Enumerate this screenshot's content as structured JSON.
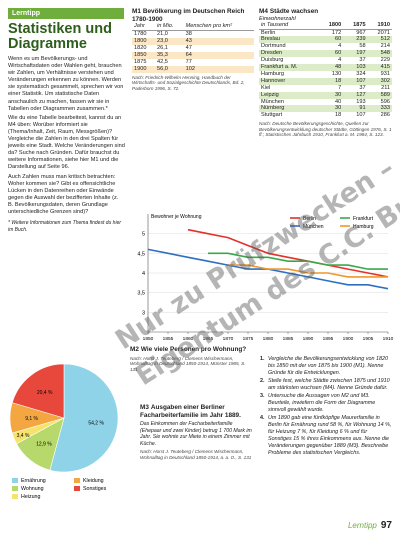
{
  "lerntipp": {
    "label": "Lerntipp",
    "title": "Statistiken und Diagramme",
    "paragraphs": [
      "Wenn es um Bevölkerungs- und Wirtschaftsdaten oder Wahlen geht, brauchen wir Zahlen, um Verhältnisse verstehen und Veränderungen erkennen zu können. Werden sie systematisch gesammelt, sprechen wir von einer Statistik. Um statistische Daten anschaulich zu machen, fassen wir sie in Tabellen oder Diagrammen zusammen.*",
      "Wie du eine Tabelle bearbeitest, kannst du an M4 üben: Worüber informiert sie (Thema/Inhalt, Zeit, Raum, Messgrößen)? Vergleiche die Zahlen in den drei Spalten für jeweils eine Stadt. Welche Veränderungen sind da? Suche nach Gründen. Dafür brauchst du weitere Informationen, siehe hier M1 und die Darstellung auf Seite 96.",
      "Auch Zahlen muss man kritisch betrachten: Woher kommen sie? Gibt es offensichtliche Lücken in den Datenreihen oder Einwände gegen die Auswahl der bezifferten Inhalte (z. B. Bevölkerungsdaten, deren Grundlage unterschiedliche Grenzen sind)?"
    ],
    "footnote": "* Weitere Informationen zum Thema findest du hier im Buch."
  },
  "m1": {
    "label": "M1",
    "title": "Bevölkerung im Deutschen Reich 1780-1900",
    "columns": [
      "Jahr",
      "in Mio.",
      "Menschen pro km²"
    ],
    "rows": [
      [
        "1780",
        "21,0",
        "38"
      ],
      [
        "1800",
        "23,0",
        "43"
      ],
      [
        "1820",
        "26,1",
        "47"
      ],
      [
        "1850",
        "35,3",
        "64"
      ],
      [
        "1875",
        "42,5",
        "77"
      ],
      [
        "1900",
        "56,0",
        "102"
      ]
    ],
    "source": "Nach: Friedrich-Wilhelm Henning, Handbuch der Wirtschafts- und Sozialgeschichte Deutschlands, Bd. 2, Paderborn 1996, S. 72."
  },
  "m4": {
    "label": "M4",
    "title": "Städte wachsen",
    "subtitle": "Einwohnerzahl",
    "columns": [
      "in Tausend",
      "1800",
      "1875",
      "1910"
    ],
    "rows": [
      [
        "Berlin",
        "172",
        "967",
        "2071"
      ],
      [
        "Breslau",
        "60",
        "239",
        "512"
      ],
      [
        "Dortmund",
        "4",
        "58",
        "214"
      ],
      [
        "Dresden",
        "60",
        "197",
        "548"
      ],
      [
        "Duisburg",
        "4",
        "37",
        "229"
      ],
      [
        "Frankfurt a. M.",
        "48",
        "103",
        "415"
      ],
      [
        "Hamburg",
        "130",
        "324",
        "931"
      ],
      [
        "Hannover",
        "18",
        "107",
        "302"
      ],
      [
        "Kiel",
        "7",
        "37",
        "211"
      ],
      [
        "Leipzig",
        "30",
        "127",
        "589"
      ],
      [
        "München",
        "40",
        "193",
        "596"
      ],
      [
        "Nürnberg",
        "30",
        "91",
        "333"
      ],
      [
        "Stuttgart",
        "18",
        "107",
        "286"
      ]
    ],
    "source": "Nach: Deutsche Bevölkerungsgeschichte, Quellen zur Bevölkerungsentwicklung deutscher Städte, Göttingen 1976, S. 1 ff.; Statistisches Jahrbuch 1910, Frankfurt a. M. 1984, S. 123."
  },
  "m2": {
    "label": "M2",
    "title": "Wie viele Personen pro Wohnung?",
    "source": "Nach: Horst J. Teuteberg / Clemens Wischermann, Wohnalltag in Deutschland 1850-1914, Münster 1985, S. 131",
    "chart": {
      "type": "line",
      "y_label": "Bewohner je Wohnung",
      "x": [
        1850,
        1855,
        1860,
        1865,
        1870,
        1875,
        1880,
        1885,
        1890,
        1895,
        1900,
        1905,
        1910
      ],
      "series": [
        {
          "name": "Berlin",
          "color": "#e2322b",
          "values": [
            null,
            null,
            5.1,
            5.0,
            4.9,
            4.7,
            4.5,
            4.4,
            4.3,
            4.2,
            4.1,
            4.0,
            3.9
          ]
        },
        {
          "name": "Frankfurt",
          "color": "#3aa84a",
          "values": [
            null,
            null,
            null,
            4.5,
            4.5,
            4.4,
            4.4,
            4.3,
            4.3,
            4.2,
            4.2,
            4.1,
            4.1
          ]
        },
        {
          "name": "München",
          "color": "#2f6fc0",
          "values": [
            4.6,
            4.5,
            4.4,
            4.3,
            4.2,
            4.1,
            4.1,
            4.0,
            3.9,
            3.8,
            3.7,
            3.7,
            3.6
          ]
        },
        {
          "name": "Hamburg",
          "color": "#f0962b",
          "values": [
            null,
            null,
            null,
            null,
            4.2,
            4.2,
            4.1,
            4.1,
            4.0,
            4.0,
            3.9,
            3.9,
            3.9
          ]
        }
      ],
      "xlim": [
        1850,
        1910
      ],
      "xticks": [
        1850,
        1855,
        1860,
        1865,
        1870,
        1875,
        1880,
        1885,
        1890,
        1895,
        1900,
        1905,
        1910
      ],
      "ylim": [
        2.5,
        5.5
      ],
      "yticks": [
        3,
        {
          "value": 3.5,
          "label": "3,5"
        },
        4,
        {
          "value": 4.5,
          "label": "4,5"
        },
        5
      ],
      "grid": true
    }
  },
  "m3": {
    "label": "M3",
    "title": "Ausgaben einer Berliner Facharbeiterfamilie im Jahr 1889.",
    "text": "Das Einkommen der Facharbeiterfamilie (Ehepaar und zwei Kinder) betrug 1 700 Mark im Jahr. Sie wohnte zur Miete in einem Zimmer mit Küche.",
    "source": "Nach: Horst J. Teuteberg / Clemens Wischermann, Wohnalltag in Deutschland 1850-1914, a. a. O., S. 131",
    "chart": {
      "type": "pie",
      "categories": [
        "Ernährung",
        "Wohnung",
        "Heizung",
        "Kleidung",
        "Sonstiges"
      ],
      "values": [
        54.2,
        12.9,
        3.4,
        9.1,
        20.4
      ],
      "value_labels": [
        "54,2 %",
        "12,9 %",
        "3,4 %",
        "9,1 %",
        "20,4 %"
      ],
      "colors": [
        "#8fd3e8",
        "#b7d96b",
        "#f5e36b",
        "#f4a640",
        "#e8473c"
      ]
    }
  },
  "tasks": [
    {
      "number": "1.",
      "text": "Vergleiche die Bevölkerungsentwicklung von 1820 bis 1850 mit der von 1875 bis 1900 (M1). Nenne Gründe für die Entwicklungen."
    },
    {
      "number": "2.",
      "text": "Stelle fest, welche Städte zwischen 1875 und 1910 am stärksten wuchsen (M4). Nenne Gründe dafür."
    },
    {
      "number": "3.",
      "text": "Untersuche die Aussagen von M2 und M3. Beurteile, inwiefern die Form der Diagramme sinnvoll gewählt wurde."
    },
    {
      "number": "4.",
      "text": "Um 1890 gab eine fünfköpfige Maurerfamilie in Berlin für Ernährung rund 58 %, für Wohnung 14 %, für Heizung 7 %, für Kleidung 6 % und für Sonstiges 15 % ihres Einkommens aus. Nenne die Veränderungen gegenüber 1889 (M3). Beschreibe Probleme des statistischen Vergleichs."
    }
  ],
  "footer": {
    "label": "Lerntipp",
    "page": "97"
  },
  "watermark": [
    "Nur zu Prüfzwecken –",
    "Eigentum des C.C. Buchner Verlags"
  ]
}
